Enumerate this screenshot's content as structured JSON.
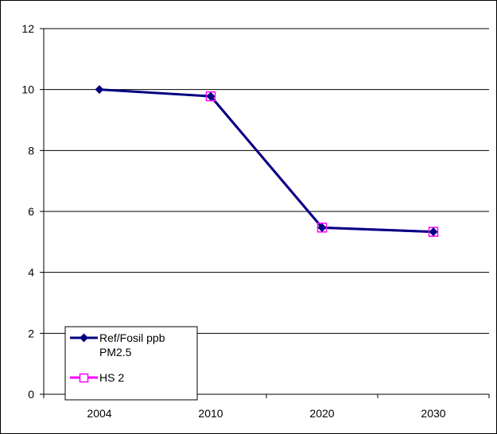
{
  "chart_data": {
    "type": "line",
    "categories": [
      "2004",
      "2010",
      "2020",
      "2030"
    ],
    "ylim": [
      0,
      12
    ],
    "yticks": [
      0,
      2,
      4,
      6,
      8,
      10,
      12
    ],
    "grid": true,
    "legend_position": "bottom-left",
    "series": [
      {
        "name": "Ref/Fosil ppb PM2.5",
        "name_lines": [
          "Ref/Fosil ppb",
          "PM2.5"
        ],
        "values": [
          10.0,
          9.78,
          5.47,
          5.33
        ],
        "color": "#000080",
        "marker": "diamond"
      },
      {
        "name": "HS 2",
        "values": [
          null,
          9.78,
          5.47,
          5.33
        ],
        "color": "#FF00FF",
        "marker": "square-open"
      }
    ]
  }
}
